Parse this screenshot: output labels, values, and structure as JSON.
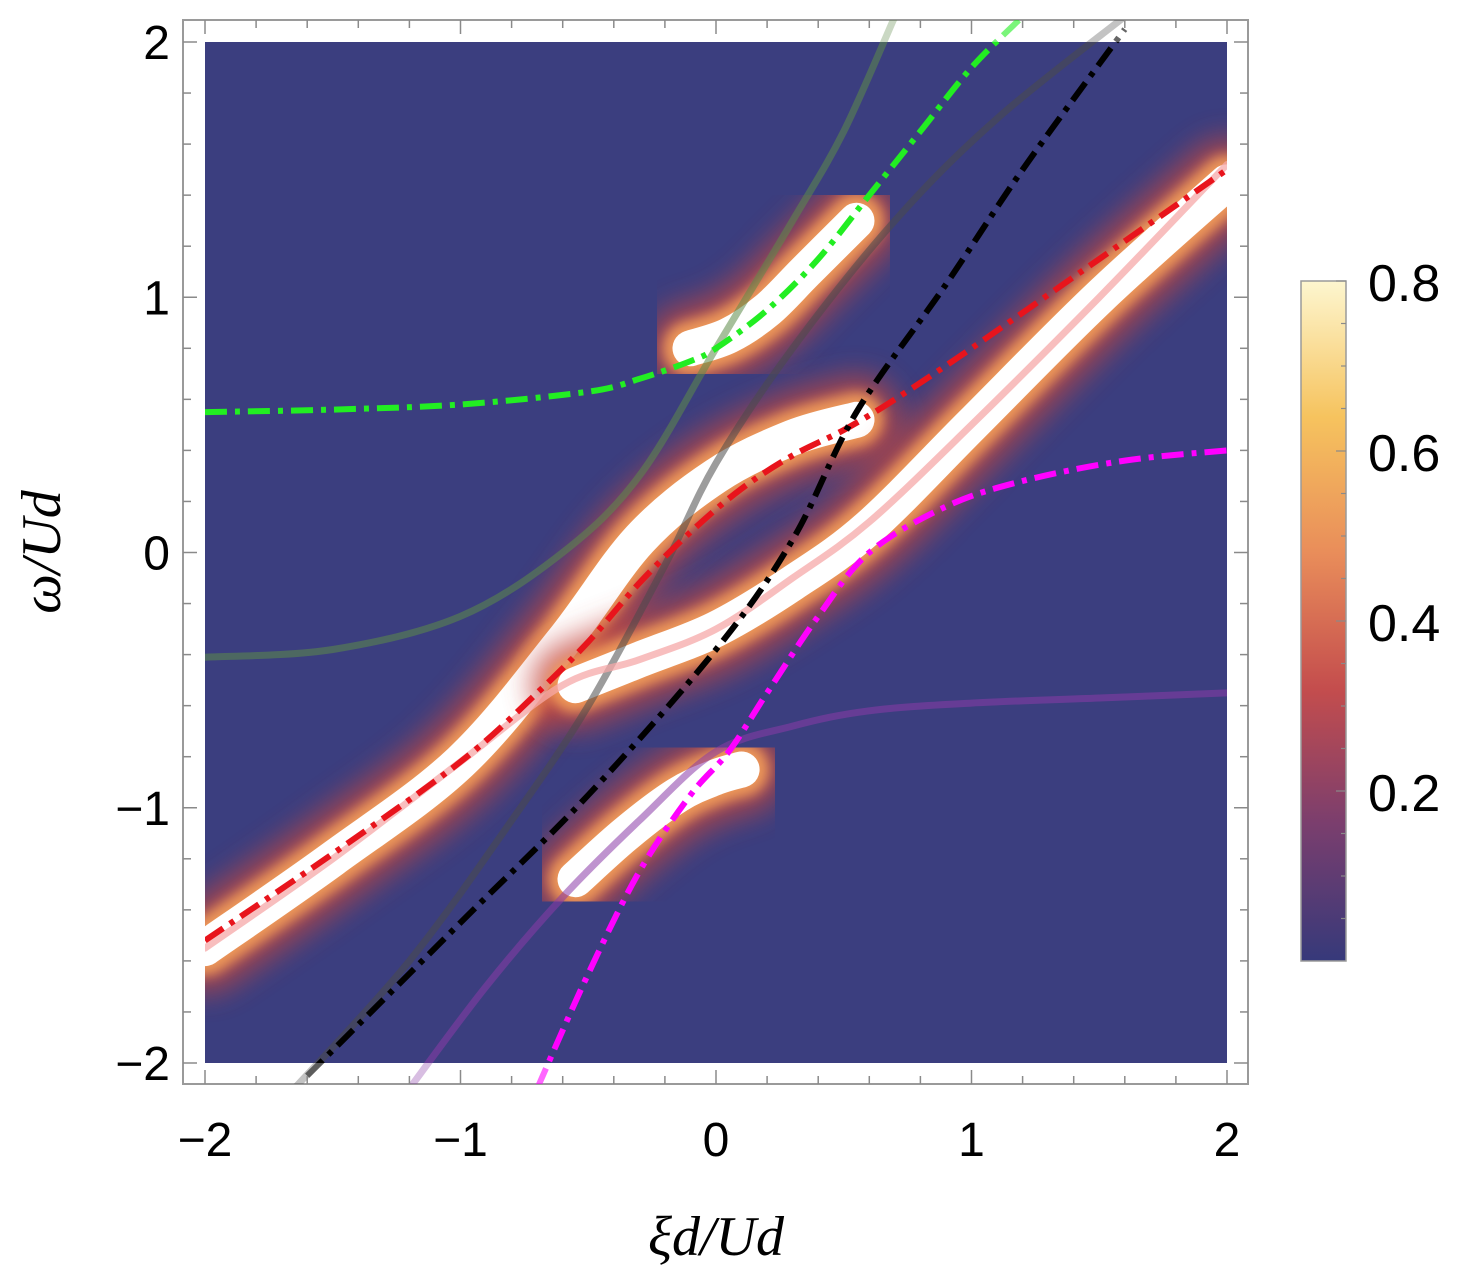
{
  "chart_data": {
    "type": "heatmap",
    "title": "",
    "xlabel": "ξd/Ud",
    "ylabel": "ω/Ud",
    "xlim": [
      -2,
      2
    ],
    "ylim": [
      -2,
      2
    ],
    "x_ticks": [
      -2,
      -1,
      0,
      1,
      2
    ],
    "y_ticks": [
      -2,
      -1,
      0,
      1,
      2
    ],
    "x_tick_labels": [
      "−2",
      "−1",
      "0",
      "1",
      "2"
    ],
    "y_tick_labels": [
      "−2",
      "−1",
      "0",
      "1",
      "2"
    ],
    "colorbar": {
      "range": [
        0,
        0.8
      ],
      "ticks": [
        0.2,
        0.4,
        0.6,
        0.8
      ],
      "tick_labels": [
        "0.2",
        "0.4",
        "0.6",
        "0.8"
      ],
      "colors": [
        "#36397a",
        "#7a3e6e",
        "#c44d4d",
        "#e98d5a",
        "#f6c35e",
        "#fdf6cf"
      ]
    },
    "background_color": "#3b3e7f",
    "spectral_bands": [
      {
        "name": "band-1",
        "x": [
          -2,
          -1.5,
          -1,
          -0.6,
          -0.3,
          0,
          0.3,
          0.55
        ],
        "y": [
          -1.55,
          -1.2,
          -0.82,
          -0.35,
          0.05,
          0.3,
          0.45,
          0.52
        ]
      },
      {
        "name": "band-2",
        "x": [
          -0.55,
          -0.3,
          0,
          0.3,
          0.6,
          1,
          1.5,
          2
        ],
        "y": [
          -0.52,
          -0.42,
          -0.3,
          -0.12,
          0.1,
          0.5,
          1.0,
          1.45
        ]
      },
      {
        "name": "band-3",
        "x": [
          -0.1,
          0.05,
          0.2,
          0.35,
          0.55
        ],
        "y": [
          0.8,
          0.85,
          0.95,
          1.1,
          1.3
        ]
      },
      {
        "name": "band-4",
        "x": [
          -0.55,
          -0.35,
          -0.15,
          0,
          0.1
        ],
        "y": [
          -1.28,
          -1.1,
          -0.95,
          -0.88,
          -0.85
        ]
      }
    ],
    "series": [
      {
        "name": "green-dashdot",
        "color": "#22ee22",
        "style": "dashdot",
        "opacity": 1.0,
        "x": [
          -2,
          -1.5,
          -1,
          -0.5,
          -0.3,
          -0.1,
          0,
          0.2,
          0.4,
          0.6,
          0.8,
          1.0,
          1.2
        ],
        "y": [
          0.55,
          0.56,
          0.58,
          0.63,
          0.68,
          0.75,
          0.8,
          0.95,
          1.15,
          1.4,
          1.65,
          1.9,
          2.1
        ]
      },
      {
        "name": "red-dashdot",
        "color": "#e8141c",
        "style": "dashdot",
        "opacity": 1.0,
        "x": [
          -2,
          -1.5,
          -1,
          -0.7,
          -0.5,
          -0.3,
          -0.1,
          0.1,
          0.3,
          0.5,
          0.7,
          1.0,
          1.5,
          2
        ],
        "y": [
          -1.52,
          -1.18,
          -0.82,
          -0.55,
          -0.35,
          -0.12,
          0.08,
          0.25,
          0.38,
          0.48,
          0.6,
          0.8,
          1.15,
          1.5
        ]
      },
      {
        "name": "magenta-dashdot",
        "color": "#ff00ff",
        "style": "dashdot",
        "opacity": 1.0,
        "x": [
          -0.7,
          -0.5,
          -0.3,
          -0.1,
          0.05,
          0.2,
          0.4,
          0.6,
          0.9,
          1.2,
          1.6,
          2
        ],
        "y": [
          -2.1,
          -1.65,
          -1.25,
          -0.95,
          -0.78,
          -0.55,
          -0.25,
          0.0,
          0.18,
          0.28,
          0.36,
          0.4
        ]
      },
      {
        "name": "black-dashdot",
        "color": "#000000",
        "style": "dashdot",
        "opacity": 1.0,
        "x": [
          -1.6,
          -1.0,
          -0.5,
          0,
          0.3,
          0.55,
          0.9,
          1.2,
          1.6
        ],
        "y": [
          -2.05,
          -1.45,
          -0.95,
          -0.38,
          0.05,
          0.55,
          1.05,
          1.5,
          2.05
        ]
      },
      {
        "name": "pink-solid",
        "color": "#f5a8a8",
        "style": "solid",
        "opacity": 0.75,
        "x": [
          -2,
          -1.5,
          -1,
          -0.6,
          -0.3,
          0,
          0.3,
          0.6,
          1,
          1.5,
          2
        ],
        "y": [
          -1.55,
          -1.2,
          -0.82,
          -0.52,
          -0.42,
          -0.3,
          -0.1,
          0.12,
          0.5,
          1.0,
          1.52
        ]
      },
      {
        "name": "green-solid-faded",
        "color": "#5d8a48",
        "style": "solid",
        "opacity": 0.55,
        "x": [
          -2,
          -1.5,
          -1,
          -0.6,
          -0.3,
          0,
          0.3,
          0.5,
          0.7
        ],
        "y": [
          -0.41,
          -0.38,
          -0.25,
          0.0,
          0.3,
          0.8,
          1.3,
          1.65,
          2.1
        ]
      },
      {
        "name": "gray-solid-faded",
        "color": "#4a4a4a",
        "style": "solid",
        "opacity": 0.55,
        "x": [
          -1.65,
          -1.2,
          -0.8,
          -0.5,
          -0.2,
          0,
          0.3,
          0.7,
          1.1,
          1.6
        ],
        "y": [
          -2.1,
          -1.6,
          -1.05,
          -0.6,
          -0.05,
          0.35,
          0.8,
          1.3,
          1.7,
          2.1
        ]
      },
      {
        "name": "purple-solid-faded",
        "color": "#8a3aa8",
        "style": "solid",
        "opacity": 0.55,
        "x": [
          -1.2,
          -0.9,
          -0.6,
          -0.3,
          0,
          0.3,
          0.6,
          1.0,
          1.5,
          2
        ],
        "y": [
          -2.1,
          -1.7,
          -1.35,
          -1.05,
          -0.78,
          -0.68,
          -0.62,
          -0.59,
          -0.57,
          -0.55
        ]
      }
    ]
  }
}
